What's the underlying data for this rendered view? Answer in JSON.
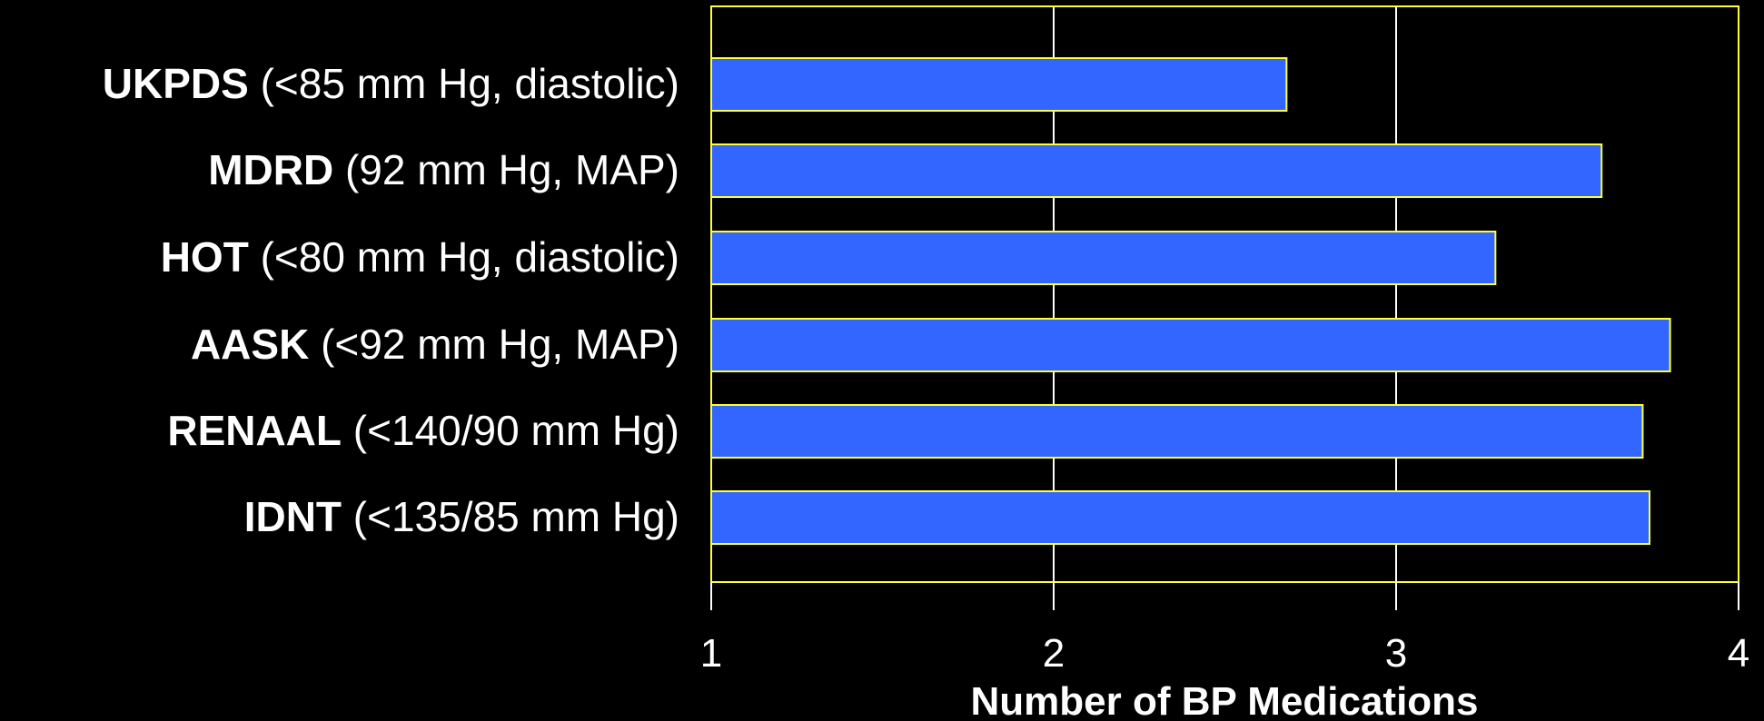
{
  "chart_data": {
    "type": "bar",
    "orientation": "horizontal",
    "categories": [
      {
        "name": "UKPDS",
        "qualifier": " (<85 mm Hg, diastolic)"
      },
      {
        "name": "MDRD",
        "qualifier": " (92 mm Hg, MAP)"
      },
      {
        "name": "HOT",
        "qualifier": " (<80 mm Hg, diastolic)"
      },
      {
        "name": "AASK",
        "qualifier": " (<92 mm Hg, MAP)"
      },
      {
        "name": "RENAAL",
        "qualifier": " (<140/90 mm Hg)"
      },
      {
        "name": "IDNT",
        "qualifier": " (<135/85 mm Hg)"
      }
    ],
    "values": [
      2.68,
      3.6,
      3.29,
      3.8,
      3.72,
      3.74
    ],
    "xlabel": "Number of BP Medications",
    "ylabel": "",
    "xlim": [
      1,
      4
    ],
    "xticks": [
      1,
      2,
      3,
      4
    ],
    "grid": true,
    "colors": {
      "background": "#000000",
      "bar_fill": "#3366FF",
      "bar_stroke": "#FFFF33",
      "frame": "#FFFF33",
      "gridline": "#FFFFFF",
      "text": "#FFFFFF"
    }
  }
}
